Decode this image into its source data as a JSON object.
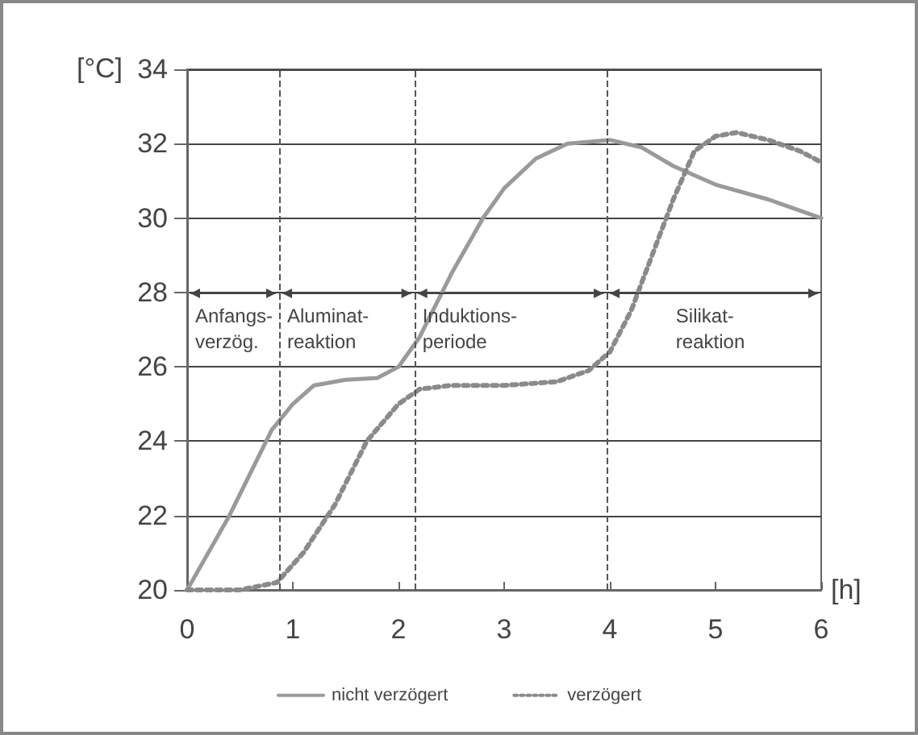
{
  "chart_data": {
    "type": "line",
    "xlabel": "[h]",
    "ylabel": "[°C]",
    "xlim": [
      0,
      6
    ],
    "xticks": [
      0,
      1,
      2,
      3,
      4,
      5,
      6
    ],
    "ylim": [
      20,
      34
    ],
    "yticks": [
      20,
      22,
      24,
      26,
      28,
      30,
      32,
      34
    ],
    "grid": "y",
    "legend": "bottom",
    "marker": "none",
    "series": [
      {
        "name": "nicht verzögert",
        "color": "#9a9a9a",
        "line_style": "solid",
        "x": [
          0,
          0.4,
          0.8,
          1,
          1.2,
          1.5,
          1.8,
          2,
          2.2,
          2.5,
          2.8,
          3,
          3.3,
          3.6,
          4,
          4.3,
          4.6,
          5,
          5.5,
          6
        ],
        "values": [
          20,
          22,
          24.3,
          25,
          25.5,
          25.65,
          25.7,
          26,
          26.8,
          28.5,
          30,
          30.8,
          31.6,
          32,
          32.1,
          31.9,
          31.4,
          30.9,
          30.5,
          30
        ]
      },
      {
        "name": "verzögert",
        "color": "#8a8a8a",
        "line_style": "dotted",
        "x": [
          0,
          0.5,
          0.85,
          1.1,
          1.4,
          1.7,
          2,
          2.2,
          2.5,
          3,
          3.5,
          3.8,
          4,
          4.2,
          4.4,
          4.6,
          4.8,
          5,
          5.2,
          5.5,
          5.8,
          6
        ],
        "values": [
          20,
          20,
          20.2,
          21,
          22.3,
          24,
          25,
          25.4,
          25.5,
          25.5,
          25.6,
          25.9,
          26.4,
          27.5,
          29,
          30.5,
          31.8,
          32.2,
          32.3,
          32.1,
          31.8,
          31.5
        ]
      }
    ],
    "ref_lines": [
      {
        "axis": "x",
        "value": 0.87,
        "color": "#555555",
        "line_style": "dashed"
      },
      {
        "axis": "x",
        "value": 2.15,
        "color": "#555555",
        "line_style": "dashed"
      },
      {
        "axis": "x",
        "value": 3.97,
        "color": "#555555",
        "line_style": "dashed"
      }
    ],
    "annotations": [
      "Anfangs-\nverzög.",
      "Aluminat-\nreaktion",
      "Induktions-\nperiode",
      "Silikat-\nreaktion"
    ]
  }
}
